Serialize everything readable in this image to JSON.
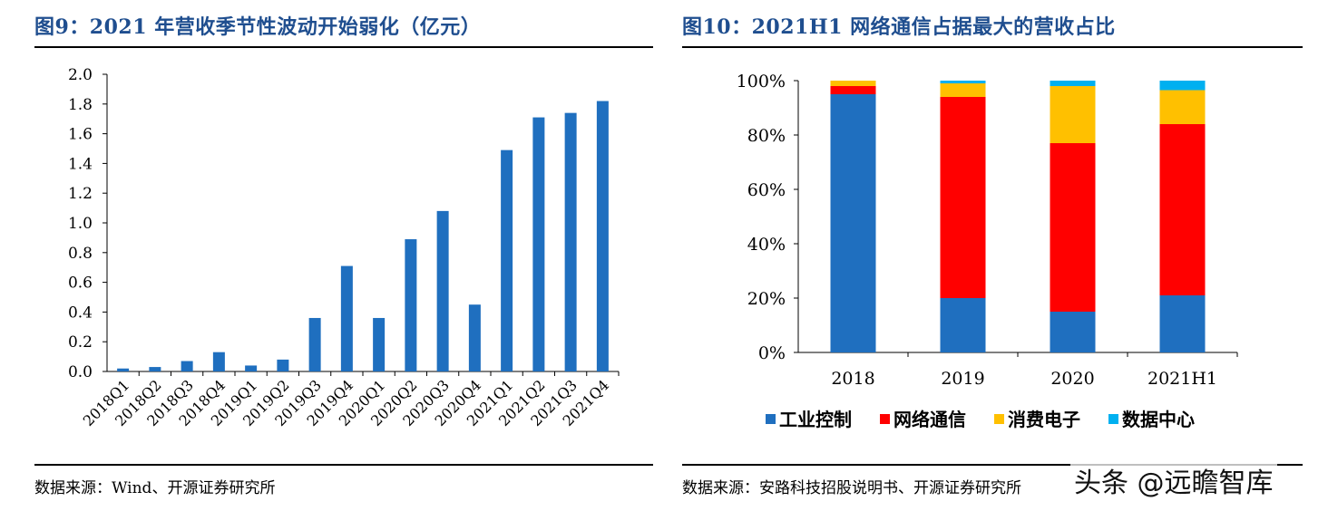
{
  "left": {
    "title": "图9：2021 年营收季节性波动开始弱化（亿元）",
    "source": "数据来源：Wind、开源证券研究所"
  },
  "right": {
    "title": "图10：2021H1 网络通信占据最大的营收占比",
    "source": "数据来源：安路科技招股说明书、开源证券研究所"
  },
  "watermark": "头条 @远瞻智库",
  "chart_data": [
    {
      "type": "bar",
      "title": "图9：2021 年营收季节性波动开始弱化（亿元）",
      "xlabel": "",
      "ylabel": "",
      "ylim": [
        0,
        2.0
      ],
      "yticks": [
        "0.0",
        "0.2",
        "0.4",
        "0.6",
        "0.8",
        "1.0",
        "1.2",
        "1.4",
        "1.6",
        "1.8",
        "2.0"
      ],
      "categories": [
        "2018Q1",
        "2018Q2",
        "2018Q3",
        "2018Q4",
        "2019Q1",
        "2019Q2",
        "2019Q3",
        "2019Q4",
        "2020Q1",
        "2020Q2",
        "2020Q3",
        "2020Q4",
        "2021Q1",
        "2021Q2",
        "2021Q3",
        "2021Q4"
      ],
      "values": [
        0.02,
        0.03,
        0.07,
        0.13,
        0.04,
        0.08,
        0.36,
        0.71,
        0.36,
        0.89,
        1.08,
        0.45,
        1.49,
        1.71,
        1.74,
        1.82
      ],
      "color": "#1f6fbf",
      "grid": false
    },
    {
      "type": "bar",
      "stacked": true,
      "title": "图10：2021H1 网络通信占据最大的营收占比",
      "ylim": [
        0,
        100
      ],
      "yticks": [
        "0%",
        "20%",
        "40%",
        "60%",
        "80%",
        "100%"
      ],
      "categories": [
        "2018",
        "2019",
        "2020",
        "2021H1"
      ],
      "series": [
        {
          "name": "工业控制",
          "values": [
            95,
            20,
            15,
            21
          ],
          "color": "#1f6fbf"
        },
        {
          "name": "网络通信",
          "values": [
            3,
            74,
            62,
            63
          ],
          "color": "#ff0000"
        },
        {
          "name": "消费电子",
          "values": [
            2,
            5,
            21,
            12.5
          ],
          "color": "#ffc000"
        },
        {
          "name": "数据中心",
          "values": [
            0,
            1,
            2,
            3.5
          ],
          "color": "#00b0f0"
        }
      ],
      "legend": "bottom",
      "grid": false
    }
  ]
}
